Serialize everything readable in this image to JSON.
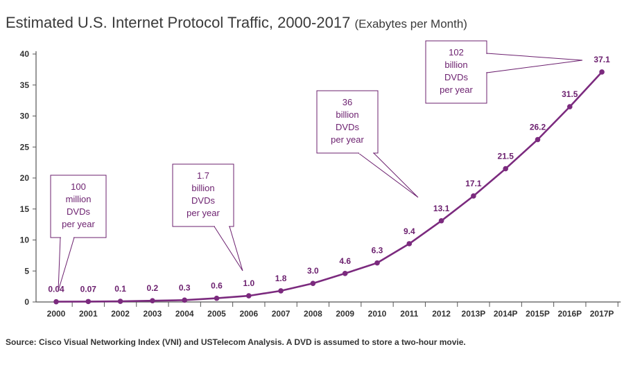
{
  "title_main": "Estimated U.S. Internet Protocol Traffic, 2000-2017",
  "title_sub": "(Exabytes per Month)",
  "source": "Source: Cisco Visual Networking Index (VNI) and USTelecom Analysis. A DVD is assumed to store a two-hour movie.",
  "colors": {
    "series": "#7b2a7e",
    "label": "#6b1f6e",
    "axis": "#555555"
  },
  "chart_data": {
    "type": "line",
    "title": "Estimated U.S. Internet Protocol Traffic, 2000-2017",
    "subtitle": "(Exabytes per Month)",
    "xlabel": "",
    "ylabel": "",
    "ylim": [
      0,
      40
    ],
    "yticks": [
      0,
      5,
      10,
      15,
      20,
      25,
      30,
      35,
      40
    ],
    "grid": false,
    "categories": [
      "2000",
      "2001",
      "2002",
      "2003",
      "2004",
      "2005",
      "2006",
      "2007",
      "2008",
      "2009",
      "2010",
      "2011",
      "2012",
      "2013P",
      "2014P",
      "2015P",
      "2016P",
      "2017P"
    ],
    "values": [
      0.04,
      0.07,
      0.1,
      0.2,
      0.3,
      0.6,
      1.0,
      1.8,
      3.0,
      4.6,
      6.3,
      9.4,
      13.1,
      17.1,
      21.5,
      26.2,
      31.5,
      37.1
    ],
    "value_labels": [
      "0.04",
      "0.07",
      "0.1",
      "0.2",
      "0.3",
      "0.6",
      "1.0",
      "1.8",
      "3.0",
      "4.6",
      "6.3",
      "9.4",
      "13.1",
      "17.1",
      "21.5",
      "26.2",
      "31.5",
      "37.1"
    ],
    "annotations": [
      {
        "lines": [
          "100",
          "million",
          "DVDs",
          "per year"
        ],
        "category": "2000"
      },
      {
        "lines": [
          "1.7",
          "billion",
          "DVDs",
          "per year"
        ],
        "category": "2006"
      },
      {
        "lines": [
          "36",
          "billion",
          "DVDs",
          "per year"
        ],
        "category": "2012"
      },
      {
        "lines": [
          "102",
          "billion",
          "DVDs",
          "per year"
        ],
        "category": "2017P"
      }
    ]
  }
}
